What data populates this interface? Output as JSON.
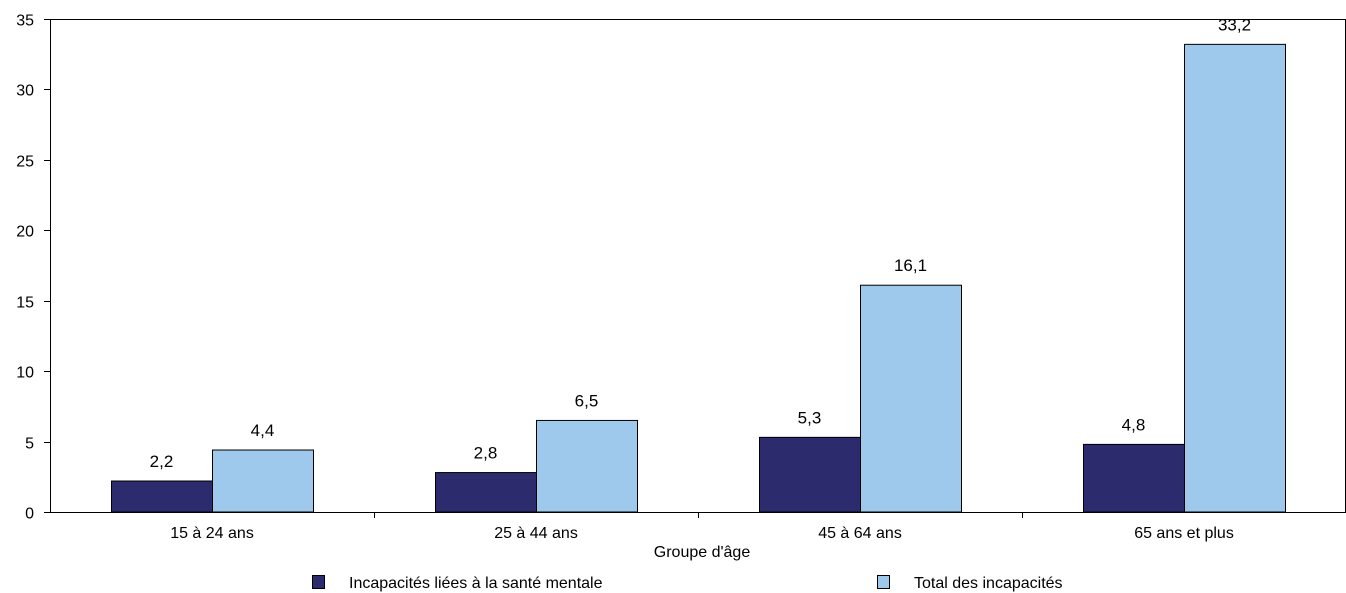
{
  "chart_data": {
    "type": "bar",
    "title": "",
    "xlabel": "Groupe d'âge",
    "ylabel": "",
    "ylim": [
      0,
      35
    ],
    "yticks": [
      0,
      5,
      10,
      15,
      20,
      25,
      30,
      35
    ],
    "ytick_labels": [
      "0",
      "5",
      "10",
      "15",
      "20",
      "25",
      "30",
      "35"
    ],
    "grid": false,
    "legend_position": "bottom",
    "categories": [
      "15 à 24 ans",
      "25 à 44 ans",
      "45 à 64 ans",
      "65 ans et plus"
    ],
    "series": [
      {
        "name": "Incapacités liées à la santé mentale",
        "color": "#2b2b6e",
        "values": [
          2.2,
          2.8,
          5.3,
          4.8
        ],
        "labels": [
          "2,2",
          "2,8",
          "5,3",
          "4,8"
        ]
      },
      {
        "name": "Total des incapacités",
        "color": "#9fc9ec",
        "values": [
          4.4,
          6.5,
          16.1,
          33.2
        ],
        "labels": [
          "4,4",
          "6,5",
          "16,1",
          "33,2"
        ]
      }
    ]
  }
}
